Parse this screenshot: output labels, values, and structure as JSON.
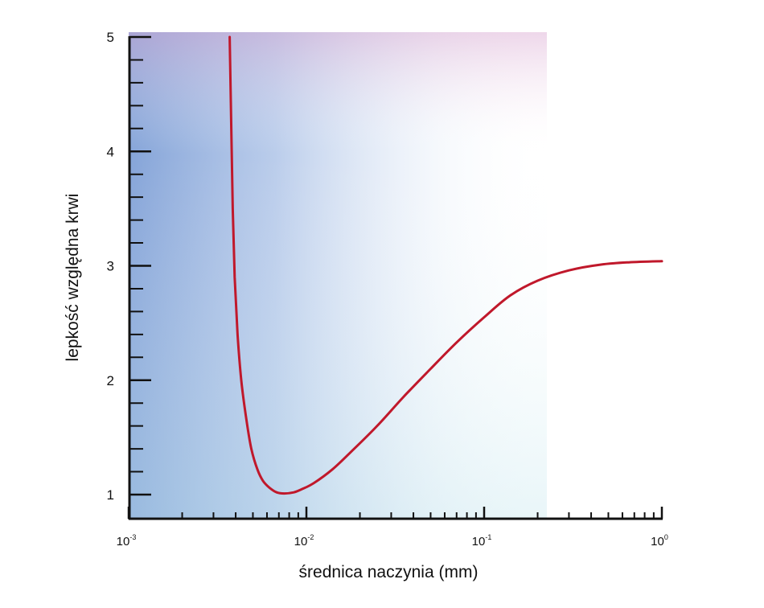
{
  "chart_data": {
    "type": "line",
    "xlabel": "średnica naczynia (mm)",
    "ylabel": "lepkość względna krwi",
    "x_scale": "log10",
    "xlim": [
      0.001,
      1
    ],
    "ylim": [
      0.9,
      5
    ],
    "y_ticks": [
      {
        "value": 1,
        "label": "1"
      },
      {
        "value": 2,
        "label": "2"
      },
      {
        "value": 3,
        "label": "3"
      },
      {
        "value": 4,
        "label": "4"
      },
      {
        "value": 5,
        "label": "5"
      }
    ],
    "x_ticks": [
      {
        "value": 0.001,
        "base": "10",
        "exp": "-3"
      },
      {
        "value": 0.01,
        "base": "10",
        "exp": "-2"
      },
      {
        "value": 0.1,
        "base": "10",
        "exp": "-1"
      },
      {
        "value": 1,
        "base": "10",
        "exp": "0"
      }
    ],
    "grid": false,
    "series": [
      {
        "color": "#c0182b",
        "points": [
          [
            0.0037,
            5.0
          ],
          [
            0.00378,
            4.2
          ],
          [
            0.00385,
            3.5
          ],
          [
            0.00395,
            2.9
          ],
          [
            0.0041,
            2.4
          ],
          [
            0.0043,
            2.0
          ],
          [
            0.0046,
            1.65
          ],
          [
            0.0049,
            1.4
          ],
          [
            0.0053,
            1.22
          ],
          [
            0.0057,
            1.12
          ],
          [
            0.0062,
            1.06
          ],
          [
            0.0068,
            1.02
          ],
          [
            0.0075,
            1.01
          ],
          [
            0.0085,
            1.02
          ],
          [
            0.0095,
            1.05
          ],
          [
            0.011,
            1.1
          ],
          [
            0.014,
            1.22
          ],
          [
            0.018,
            1.38
          ],
          [
            0.025,
            1.6
          ],
          [
            0.035,
            1.85
          ],
          [
            0.05,
            2.1
          ],
          [
            0.07,
            2.33
          ],
          [
            0.1,
            2.55
          ],
          [
            0.14,
            2.74
          ],
          [
            0.2,
            2.87
          ],
          [
            0.3,
            2.96
          ],
          [
            0.45,
            3.01
          ],
          [
            0.65,
            3.03
          ],
          [
            1.0,
            3.04
          ]
        ]
      }
    ]
  },
  "colors": {
    "axis": "#111111",
    "curve": "#c0182b",
    "plot_bg_left": "#7e9fd6",
    "plot_bg_right": "#ffffff"
  }
}
